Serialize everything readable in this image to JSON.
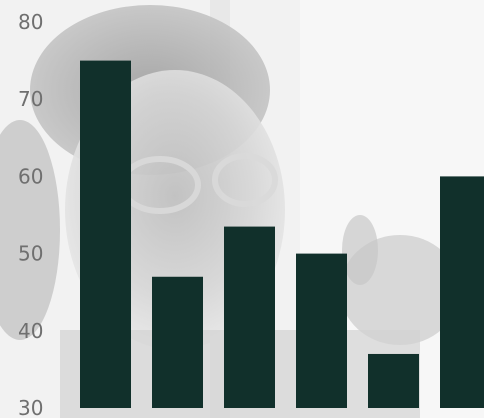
{
  "chart_data": {
    "type": "bar",
    "title": "",
    "xlabel": "",
    "ylabel": "",
    "categories": [
      "",
      "",
      "",
      "",
      "",
      ""
    ],
    "values": [
      75,
      47,
      53.5,
      50,
      37,
      60
    ],
    "ylim": [
      30,
      80
    ],
    "yticks": [
      30,
      40,
      50,
      60,
      70,
      80
    ],
    "ytick_labels": [
      "30",
      "40",
      "50",
      "60",
      "70",
      "80"
    ],
    "grid": false,
    "legend": "none",
    "bar_color": "#11302b"
  },
  "background": {
    "description_icon": "photo-background"
  }
}
